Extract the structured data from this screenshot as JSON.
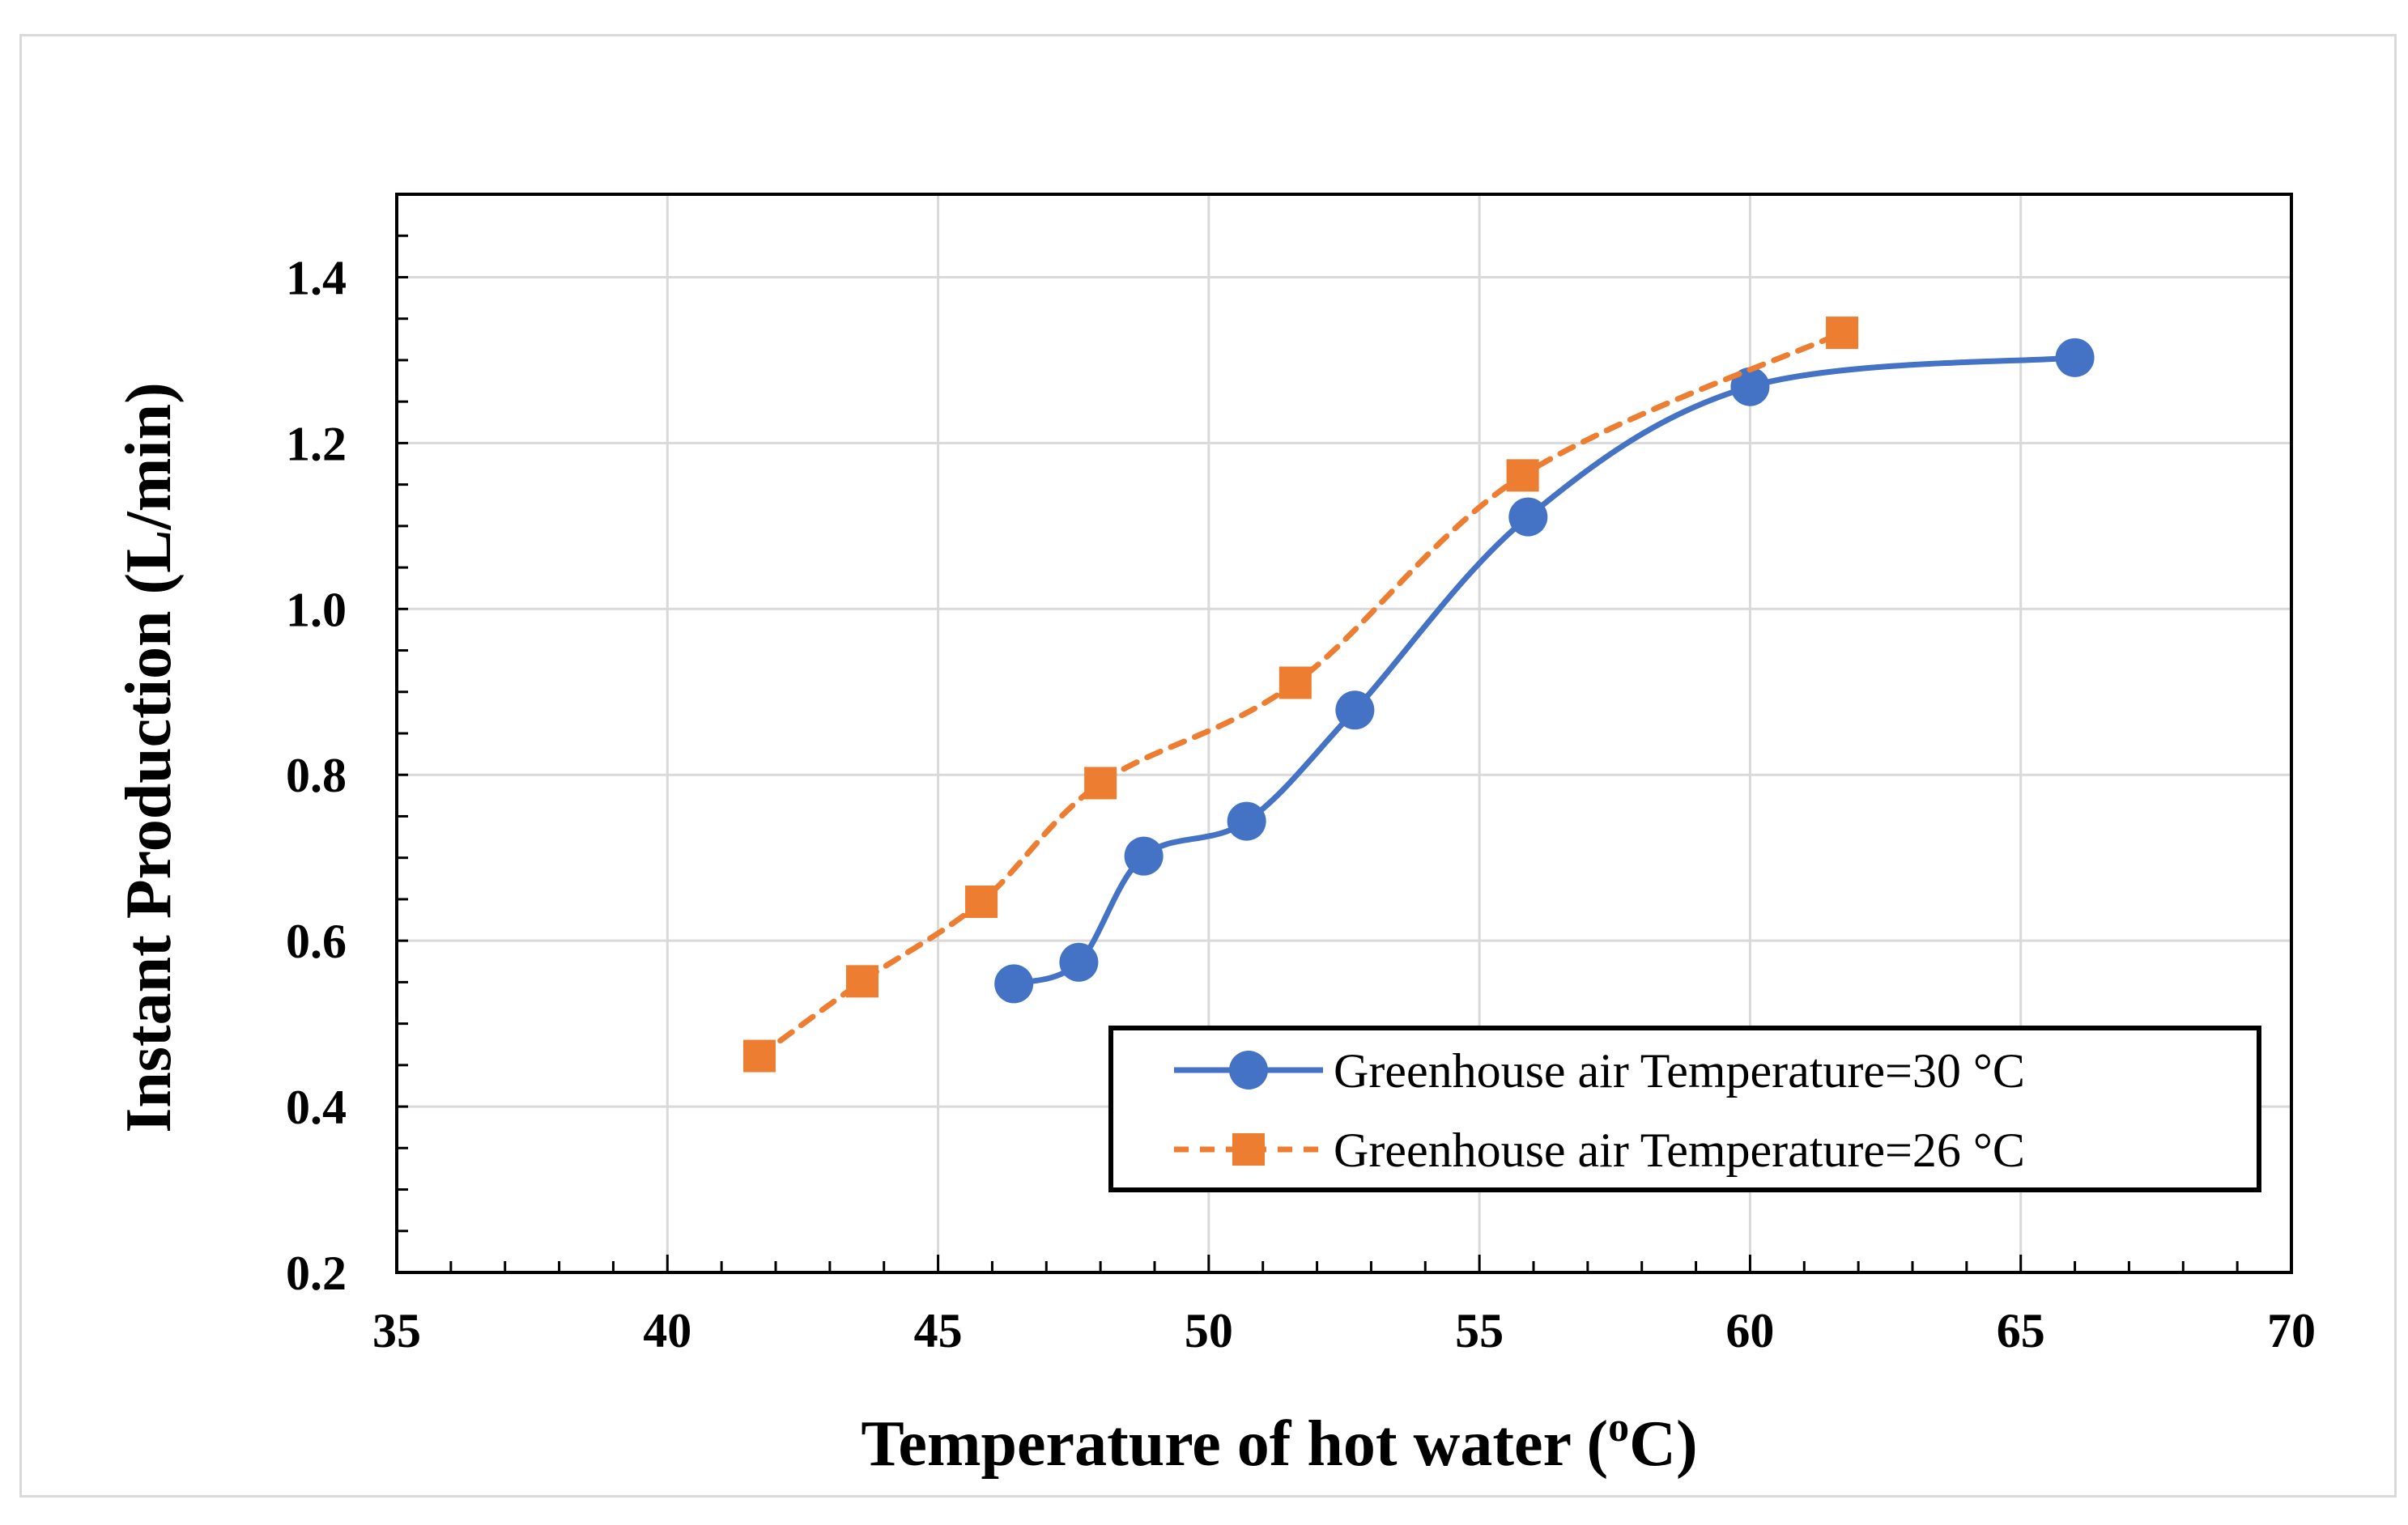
{
  "chart_data": {
    "type": "line",
    "title": "",
    "xlabel": "Temperature of hot water (",
    "xlabel_sup": "o",
    "xlabel_end": "C)",
    "ylabel": "Instant  Production (L/min)",
    "xlim": [
      35,
      70
    ],
    "ylim": [
      0.2,
      1.5
    ],
    "x_ticks": [
      35,
      40,
      45,
      50,
      55,
      60,
      65,
      70
    ],
    "x_tick_labels": [
      "35",
      "40",
      "45",
      "50",
      "55",
      "60",
      "65",
      "70"
    ],
    "y_ticks": [
      0.2,
      0.4,
      0.6,
      0.8,
      1.0,
      1.2,
      1.4
    ],
    "y_tick_labels": [
      "0.2",
      "0.4",
      "0.6",
      "0.8",
      "1.0",
      "1.2",
      "1.4"
    ],
    "grid": true,
    "legend_position": "bottom-right",
    "series": [
      {
        "name": "Greenhouse air Temperature=30 °C",
        "color": "#4472c4",
        "marker": "circle",
        "line_style": "solid",
        "x": [
          46.4,
          47.6,
          48.8,
          50.7,
          52.7,
          55.9,
          60.0,
          66.0
        ],
        "y": [
          0.548,
          0.574,
          0.702,
          0.744,
          0.878,
          1.111,
          1.268,
          1.303
        ]
      },
      {
        "name": "Greenhouse air Temperature=26 °C",
        "color": "#ed7d31",
        "marker": "square",
        "line_style": "dashed",
        "x": [
          41.7,
          43.6,
          45.8,
          48.0,
          51.6,
          55.8,
          61.7
        ],
        "y": [
          0.461,
          0.551,
          0.647,
          0.79,
          0.911,
          1.161,
          1.333
        ]
      }
    ]
  }
}
